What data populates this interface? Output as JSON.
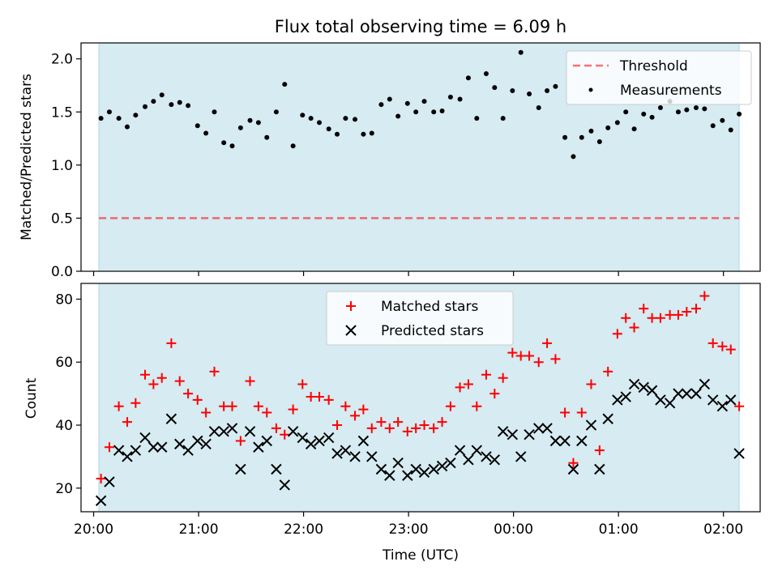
{
  "title": "Flux total observing time = 6.09 h",
  "colors": {
    "shade": "#add8e6",
    "threshold": "#ff0000",
    "matched": "#ff0000",
    "predicted": "#000000",
    "points": "#000000"
  },
  "chart_data": [
    {
      "type": "scatter",
      "ylabel": "Matched/Predicted stars",
      "ylim": [
        0,
        2.15
      ],
      "yticks": [
        0.0,
        0.5,
        1.0,
        1.5,
        2.0
      ],
      "ytick_labels": [
        "0.0",
        "0.5",
        "1.0",
        "1.5",
        "2.0"
      ],
      "shaded_span_hours": [
        20.05,
        26.15
      ],
      "legend": {
        "position": "top-right",
        "entries": [
          "Threshold",
          "Measurements"
        ]
      },
      "threshold": {
        "name": "Threshold",
        "value": 0.5,
        "style": "dashed"
      },
      "series": [
        {
          "name": "Measurements",
          "marker": "dot",
          "points": [
            [
              20.07,
              1.44
            ],
            [
              20.15,
              1.5
            ],
            [
              20.24,
              1.44
            ],
            [
              20.32,
              1.36
            ],
            [
              20.4,
              1.47
            ],
            [
              20.49,
              1.55
            ],
            [
              20.57,
              1.6
            ],
            [
              20.65,
              1.66
            ],
            [
              20.74,
              1.57
            ],
            [
              20.82,
              1.59
            ],
            [
              20.9,
              1.56
            ],
            [
              20.99,
              1.37
            ],
            [
              21.07,
              1.3
            ],
            [
              21.15,
              1.5
            ],
            [
              21.24,
              1.21
            ],
            [
              21.32,
              1.18
            ],
            [
              21.4,
              1.35
            ],
            [
              21.49,
              1.42
            ],
            [
              21.57,
              1.4
            ],
            [
              21.65,
              1.26
            ],
            [
              21.74,
              1.5
            ],
            [
              21.82,
              1.76
            ],
            [
              21.9,
              1.18
            ],
            [
              21.99,
              1.47
            ],
            [
              22.07,
              1.44
            ],
            [
              22.15,
              1.4
            ],
            [
              22.24,
              1.34
            ],
            [
              22.32,
              1.29
            ],
            [
              22.4,
              1.44
            ],
            [
              22.49,
              1.43
            ],
            [
              22.57,
              1.29
            ],
            [
              22.65,
              1.3
            ],
            [
              22.74,
              1.57
            ],
            [
              22.82,
              1.62
            ],
            [
              22.9,
              1.46
            ],
            [
              22.99,
              1.58
            ],
            [
              23.07,
              1.5
            ],
            [
              23.15,
              1.6
            ],
            [
              23.24,
              1.5
            ],
            [
              23.32,
              1.51
            ],
            [
              23.4,
              1.64
            ],
            [
              23.49,
              1.62
            ],
            [
              23.57,
              1.82
            ],
            [
              23.65,
              1.44
            ],
            [
              23.74,
              1.86
            ],
            [
              23.82,
              1.73
            ],
            [
              23.9,
              1.44
            ],
            [
              23.99,
              1.7
            ],
            [
              24.07,
              2.06
            ],
            [
              24.15,
              1.67
            ],
            [
              24.24,
              1.54
            ],
            [
              24.32,
              1.7
            ],
            [
              24.4,
              1.74
            ],
            [
              24.49,
              1.26
            ],
            [
              24.57,
              1.08
            ],
            [
              24.65,
              1.26
            ],
            [
              24.74,
              1.32
            ],
            [
              24.82,
              1.22
            ],
            [
              24.9,
              1.35
            ],
            [
              24.99,
              1.4
            ],
            [
              25.07,
              1.5
            ],
            [
              25.15,
              1.34
            ],
            [
              25.24,
              1.48
            ],
            [
              25.32,
              1.45
            ],
            [
              25.4,
              1.54
            ],
            [
              25.49,
              1.6
            ],
            [
              25.57,
              1.5
            ],
            [
              25.65,
              1.52
            ],
            [
              25.74,
              1.54
            ],
            [
              25.82,
              1.53
            ],
            [
              25.9,
              1.37
            ],
            [
              25.99,
              1.42
            ],
            [
              26.07,
              1.33
            ],
            [
              26.15,
              1.48
            ]
          ]
        }
      ]
    },
    {
      "type": "scatter",
      "xlabel": "Time (UTC)",
      "ylabel": "Count",
      "ylim": [
        12.5,
        85
      ],
      "yticks": [
        20,
        40,
        60,
        80
      ],
      "ytick_labels": [
        "20",
        "40",
        "60",
        "80"
      ],
      "xticks_hours": [
        20,
        21,
        22,
        23,
        24,
        25,
        26
      ],
      "xtick_labels": [
        "20:00",
        "21:00",
        "22:00",
        "23:00",
        "00:00",
        "01:00",
        "02:00"
      ],
      "xlim_hours": [
        19.88,
        26.35
      ],
      "shaded_span_hours": [
        20.05,
        26.15
      ],
      "legend": {
        "position": "top-center",
        "entries": [
          "Matched stars",
          "Predicted stars"
        ]
      },
      "series": [
        {
          "name": "Matched stars",
          "marker": "plus",
          "points": [
            [
              20.07,
              23
            ],
            [
              20.15,
              33
            ],
            [
              20.24,
              46
            ],
            [
              20.32,
              41
            ],
            [
              20.4,
              47
            ],
            [
              20.49,
              56
            ],
            [
              20.57,
              53
            ],
            [
              20.65,
              55
            ],
            [
              20.74,
              66
            ],
            [
              20.82,
              54
            ],
            [
              20.9,
              50
            ],
            [
              20.99,
              48
            ],
            [
              21.07,
              44
            ],
            [
              21.15,
              57
            ],
            [
              21.24,
              46
            ],
            [
              21.32,
              46
            ],
            [
              21.4,
              35
            ],
            [
              21.49,
              54
            ],
            [
              21.57,
              46
            ],
            [
              21.65,
              44
            ],
            [
              21.74,
              39
            ],
            [
              21.82,
              37
            ],
            [
              21.9,
              45
            ],
            [
              21.99,
              53
            ],
            [
              22.07,
              49
            ],
            [
              22.15,
              49
            ],
            [
              22.24,
              48
            ],
            [
              22.32,
              40
            ],
            [
              22.4,
              46
            ],
            [
              22.49,
              43
            ],
            [
              22.57,
              45
            ],
            [
              22.65,
              39
            ],
            [
              22.74,
              41
            ],
            [
              22.82,
              39
            ],
            [
              22.9,
              41
            ],
            [
              22.99,
              38
            ],
            [
              23.07,
              39
            ],
            [
              23.15,
              40
            ],
            [
              23.24,
              39
            ],
            [
              23.32,
              41
            ],
            [
              23.4,
              46
            ],
            [
              23.49,
              52
            ],
            [
              23.57,
              53
            ],
            [
              23.65,
              46
            ],
            [
              23.74,
              56
            ],
            [
              23.82,
              50
            ],
            [
              23.9,
              55
            ],
            [
              23.99,
              63
            ],
            [
              24.07,
              62
            ],
            [
              24.15,
              62
            ],
            [
              24.24,
              60
            ],
            [
              24.32,
              66
            ],
            [
              24.4,
              61
            ],
            [
              24.49,
              44
            ],
            [
              24.57,
              28
            ],
            [
              24.65,
              44
            ],
            [
              24.74,
              53
            ],
            [
              24.82,
              32
            ],
            [
              24.9,
              57
            ],
            [
              24.99,
              69
            ],
            [
              25.07,
              74
            ],
            [
              25.15,
              71
            ],
            [
              25.24,
              77
            ],
            [
              25.32,
              74
            ],
            [
              25.4,
              74
            ],
            [
              25.49,
              75
            ],
            [
              25.57,
              75
            ],
            [
              25.65,
              76
            ],
            [
              25.74,
              77
            ],
            [
              25.82,
              81
            ],
            [
              25.9,
              66
            ],
            [
              25.99,
              65
            ],
            [
              26.07,
              64
            ],
            [
              26.15,
              46
            ]
          ]
        },
        {
          "name": "Predicted stars",
          "marker": "x",
          "points": [
            [
              20.07,
              16
            ],
            [
              20.15,
              22
            ],
            [
              20.24,
              32
            ],
            [
              20.32,
              30
            ],
            [
              20.4,
              32
            ],
            [
              20.49,
              36
            ],
            [
              20.57,
              33
            ],
            [
              20.65,
              33
            ],
            [
              20.74,
              42
            ],
            [
              20.82,
              34
            ],
            [
              20.9,
              32
            ],
            [
              20.99,
              35
            ],
            [
              21.07,
              34
            ],
            [
              21.15,
              38
            ],
            [
              21.24,
              38
            ],
            [
              21.32,
              39
            ],
            [
              21.4,
              26
            ],
            [
              21.49,
              38
            ],
            [
              21.57,
              33
            ],
            [
              21.65,
              35
            ],
            [
              21.74,
              26
            ],
            [
              21.82,
              21
            ],
            [
              21.9,
              38
            ],
            [
              21.99,
              36
            ],
            [
              22.07,
              34
            ],
            [
              22.15,
              35
            ],
            [
              22.24,
              36
            ],
            [
              22.32,
              31
            ],
            [
              22.4,
              32
            ],
            [
              22.49,
              30
            ],
            [
              22.57,
              35
            ],
            [
              22.65,
              30
            ],
            [
              22.74,
              26
            ],
            [
              22.82,
              24
            ],
            [
              22.9,
              28
            ],
            [
              22.99,
              24
            ],
            [
              23.07,
              26
            ],
            [
              23.15,
              25
            ],
            [
              23.24,
              26
            ],
            [
              23.32,
              27
            ],
            [
              23.4,
              28
            ],
            [
              23.49,
              32
            ],
            [
              23.57,
              29
            ],
            [
              23.65,
              32
            ],
            [
              23.74,
              30
            ],
            [
              23.82,
              29
            ],
            [
              23.9,
              38
            ],
            [
              23.99,
              37
            ],
            [
              24.07,
              30
            ],
            [
              24.15,
              37
            ],
            [
              24.24,
              39
            ],
            [
              24.32,
              39
            ],
            [
              24.4,
              35
            ],
            [
              24.49,
              35
            ],
            [
              24.57,
              26
            ],
            [
              24.65,
              35
            ],
            [
              24.74,
              40
            ],
            [
              24.82,
              26
            ],
            [
              24.9,
              42
            ],
            [
              24.99,
              48
            ],
            [
              25.07,
              49
            ],
            [
              25.15,
              53
            ],
            [
              25.24,
              52
            ],
            [
              25.32,
              51
            ],
            [
              25.4,
              48
            ],
            [
              25.49,
              47
            ],
            [
              25.57,
              50
            ],
            [
              25.65,
              50
            ],
            [
              25.74,
              50
            ],
            [
              25.82,
              53
            ],
            [
              25.9,
              48
            ],
            [
              25.99,
              46
            ],
            [
              26.07,
              48
            ],
            [
              26.15,
              31
            ]
          ]
        }
      ]
    }
  ]
}
